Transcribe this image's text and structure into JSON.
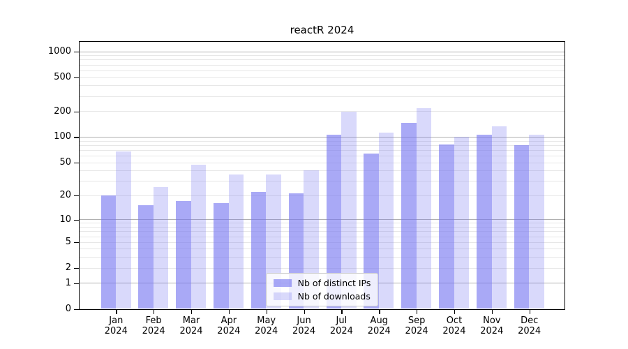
{
  "figure": {
    "background": "#ffffff"
  },
  "chart_data": {
    "type": "bar",
    "title": "reactR 2024",
    "categories": [
      "Jan",
      "Feb",
      "Mar",
      "Apr",
      "May",
      "Jun",
      "Jul",
      "Aug",
      "Sep",
      "Oct",
      "Nov",
      "Dec"
    ],
    "category_year": "2024",
    "series": [
      {
        "name": "Nb of distinct IPs",
        "color": "rgba(116,116,240,0.62)",
        "color_hex_on_white": "#a9a9f6",
        "values": [
          20,
          15,
          17,
          16,
          22,
          21,
          106,
          63,
          146,
          82,
          106,
          79
        ]
      },
      {
        "name": "Nb of downloads",
        "color": "rgba(116,116,240,0.27)",
        "color_hex_on_white": "#dadafb",
        "values": [
          67,
          25,
          47,
          36,
          36,
          40,
          196,
          112,
          217,
          100,
          132,
          106
        ]
      }
    ],
    "yscale": "log1p",
    "y_ticks": [
      0,
      1,
      2,
      5,
      10,
      20,
      50,
      100,
      200,
      500,
      1000
    ],
    "y_major_gridlines": [
      1,
      10,
      100,
      1000
    ],
    "ylim": [
      0,
      1290
    ],
    "xlabel": "",
    "ylabel": "",
    "grid": true,
    "legend_position": "lower center",
    "grid_major_color": "#b0b0b0",
    "grid_minor_color": "#e7e7e7",
    "axis_color": "#000000"
  }
}
